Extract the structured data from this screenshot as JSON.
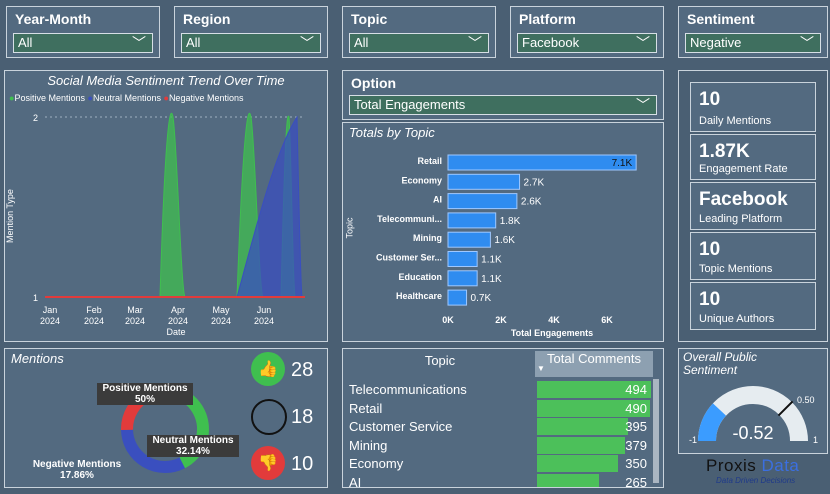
{
  "slicers": [
    {
      "title": "Year-Month",
      "value": "All"
    },
    {
      "title": "Region",
      "value": "All"
    },
    {
      "title": "Topic",
      "value": "All"
    },
    {
      "title": "Platform",
      "value": "Facebook"
    },
    {
      "title": "Sentiment",
      "value": "Negative"
    }
  ],
  "option": {
    "title": "Option",
    "value": "Total Engagements"
  },
  "trend": {
    "title": "Social Media Sentiment Trend Over Time",
    "legend": [
      "Positive Mentions",
      "Neutral Mentions",
      "Negative Mentions"
    ],
    "colors": {
      "positive": "#3fbf4f",
      "neutral": "#3a4fbf",
      "negative": "#e23b3b"
    },
    "ylabel": "Mention Type",
    "xlabel": "Date",
    "yticks": [
      "2",
      "1"
    ],
    "xticks": [
      [
        "Jan",
        "2024"
      ],
      [
        "Feb",
        "2024"
      ],
      [
        "Mar",
        "2024"
      ],
      [
        "Apr",
        "2024"
      ],
      [
        "May",
        "2024"
      ],
      [
        "Jun",
        "2024"
      ]
    ]
  },
  "topics_chart": {
    "title": "Totals by Topic",
    "ylabel": "Topic",
    "xlabel": "Total Engagements",
    "xticks": [
      "0K",
      "2K",
      "4K",
      "6K"
    ]
  },
  "chart_data": {
    "type": "bar",
    "categories": [
      "Retail",
      "Economy",
      "AI",
      "Telecommuni...",
      "Mining",
      "Customer Ser...",
      "Education",
      "Healthcare"
    ],
    "values": [
      7100,
      2700,
      2600,
      1800,
      1600,
      1100,
      1100,
      700
    ],
    "labels": [
      "7.1K",
      "2.7K",
      "2.6K",
      "1.8K",
      "1.6K",
      "1.1K",
      "1.1K",
      "0.7K"
    ],
    "xlabel": "Total Engagements",
    "ylabel": "Topic",
    "xlim": [
      0,
      7300
    ]
  },
  "kpis": [
    {
      "value": "10",
      "label": "Daily Mentions"
    },
    {
      "value": "1.87K",
      "label": "Engagement Rate"
    },
    {
      "value": "Facebook",
      "label": "Leading Platform"
    },
    {
      "value": "10",
      "label": "Topic Mentions"
    },
    {
      "value": "10",
      "label": "Unique Authors"
    }
  ],
  "mentions": {
    "title": "Mentions",
    "positive_label": "Positive Mentions",
    "positive_pct": "50%",
    "positive_frac": 0.5,
    "neutral_label": "Neutral Mentions",
    "neutral_pct": "32.14%",
    "neutral_frac": 0.3214,
    "negative_label": "Negative Mentions",
    "negative_pct": "17.86%",
    "negative_frac": 0.1786,
    "positive_count": "28",
    "neutral_count": "18",
    "negative_count": "10"
  },
  "table": {
    "col1": "Topic",
    "col2": "Total Comments",
    "rows": [
      {
        "topic": "Telecommunications",
        "value": "494",
        "frac": 1.0
      },
      {
        "topic": "Retail",
        "value": "490",
        "frac": 0.99
      },
      {
        "topic": "Customer Service",
        "value": "395",
        "frac": 0.8
      },
      {
        "topic": "Mining",
        "value": "379",
        "frac": 0.77
      },
      {
        "topic": "Economy",
        "value": "350",
        "frac": 0.71
      },
      {
        "topic": "AI",
        "value": "265",
        "frac": 0.54
      }
    ]
  },
  "gauge": {
    "title": "Overall Public Sentiment",
    "value": "-0.52",
    "min": "-1",
    "max": "1",
    "target": "0.50",
    "value_num": -0.52
  },
  "brand": {
    "name1": "Proxis",
    "name2": "Data",
    "tagline": "Data Driven Decisions"
  }
}
